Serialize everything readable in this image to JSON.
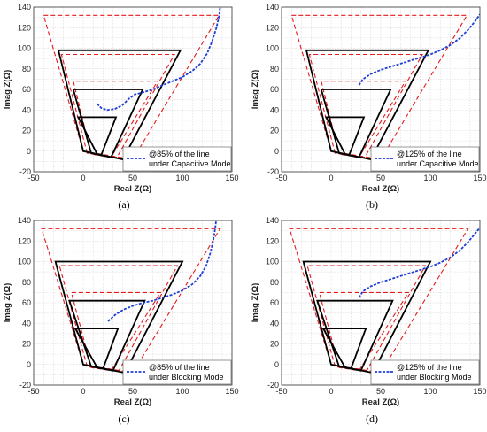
{
  "chart_data": [
    {
      "id": "a",
      "type": "line",
      "caption": "(a)",
      "xlabel": "Real Z(Ω)",
      "ylabel": "Imag Z(Ω)",
      "xlim": [
        -50,
        150
      ],
      "ylim": [
        -20,
        140
      ],
      "xticks": [
        -50,
        0,
        50,
        100,
        150
      ],
      "yticks": [
        -20,
        0,
        20,
        40,
        60,
        80,
        100,
        120,
        140
      ],
      "grid": true,
      "legend": {
        "placement": "bottom-right",
        "label_line1": "@85% of the line",
        "label_line2": "under Capacitive Mode"
      },
      "zones_solid": [
        [
          [
            0,
            0
          ],
          [
            -25,
            98
          ],
          [
            98,
            98
          ],
          [
            40,
            -8
          ]
        ],
        [
          [
            8,
            -2
          ],
          [
            -10,
            60
          ],
          [
            60,
            60
          ],
          [
            28,
            -6
          ]
        ],
        [
          [
            14,
            -3
          ],
          [
            -5,
            33
          ],
          [
            33,
            33
          ],
          [
            18,
            -4
          ]
        ]
      ],
      "zones_dashed": [
        [
          [
            0,
            0
          ],
          [
            -40,
            132
          ],
          [
            137,
            132
          ],
          [
            50,
            -8
          ]
        ],
        [
          [
            4,
            -2
          ],
          [
            -22,
            94
          ],
          [
            92,
            94
          ],
          [
            34,
            -6
          ]
        ],
        [
          [
            8,
            -3
          ],
          [
            -10,
            68
          ],
          [
            75,
            68
          ],
          [
            28,
            -6
          ]
        ]
      ],
      "trajectory": [
        [
          14,
          46
        ],
        [
          18,
          42
        ],
        [
          24,
          40
        ],
        [
          32,
          41
        ],
        [
          40,
          45
        ],
        [
          46,
          51
        ],
        [
          52,
          55
        ],
        [
          60,
          57
        ],
        [
          70,
          60
        ],
        [
          80,
          64
        ],
        [
          90,
          68
        ],
        [
          100,
          72
        ],
        [
          110,
          78
        ],
        [
          118,
          85
        ],
        [
          125,
          95
        ],
        [
          130,
          107
        ],
        [
          134,
          119
        ],
        [
          137,
          131
        ],
        [
          138,
          140
        ]
      ]
    },
    {
      "id": "b",
      "type": "line",
      "caption": "(b)",
      "xlabel": "Real Z(Ω)",
      "ylabel": "Imag Z(Ω)",
      "xlim": [
        -50,
        150
      ],
      "ylim": [
        -20,
        140
      ],
      "xticks": [
        -50,
        0,
        50,
        100,
        150
      ],
      "yticks": [
        -20,
        0,
        20,
        40,
        60,
        80,
        100,
        120,
        140
      ],
      "grid": true,
      "legend": {
        "placement": "bottom-right",
        "label_line1": "@125% of the line",
        "label_line2": "under Capacitive Mode"
      },
      "zones_solid": [
        [
          [
            0,
            0
          ],
          [
            -25,
            98
          ],
          [
            98,
            98
          ],
          [
            40,
            -8
          ]
        ],
        [
          [
            8,
            -2
          ],
          [
            -10,
            60
          ],
          [
            60,
            60
          ],
          [
            28,
            -6
          ]
        ],
        [
          [
            14,
            -3
          ],
          [
            -5,
            33
          ],
          [
            33,
            33
          ],
          [
            18,
            -4
          ]
        ]
      ],
      "zones_dashed": [
        [
          [
            0,
            0
          ],
          [
            -40,
            132
          ],
          [
            137,
            132
          ],
          [
            50,
            -8
          ]
        ],
        [
          [
            4,
            -2
          ],
          [
            -22,
            94
          ],
          [
            92,
            94
          ],
          [
            34,
            -6
          ]
        ],
        [
          [
            8,
            -3
          ],
          [
            -10,
            68
          ],
          [
            75,
            68
          ],
          [
            28,
            -6
          ]
        ]
      ],
      "trajectory": [
        [
          28,
          64
        ],
        [
          32,
          70
        ],
        [
          40,
          75
        ],
        [
          50,
          79
        ],
        [
          60,
          82
        ],
        [
          70,
          85
        ],
        [
          80,
          88
        ],
        [
          90,
          91
        ],
        [
          100,
          94
        ],
        [
          110,
          98
        ],
        [
          120,
          103
        ],
        [
          130,
          110
        ],
        [
          138,
          118
        ],
        [
          145,
          126
        ],
        [
          150,
          133
        ]
      ]
    },
    {
      "id": "c",
      "type": "line",
      "caption": "(c)",
      "xlabel": "Real Z(Ω)",
      "ylabel": "Imag Z(Ω)",
      "xlim": [
        -50,
        150
      ],
      "ylim": [
        -20,
        140
      ],
      "xticks": [
        -50,
        0,
        50,
        100,
        150
      ],
      "yticks": [
        -20,
        0,
        20,
        40,
        60,
        80,
        100,
        120,
        140
      ],
      "grid": true,
      "legend": {
        "placement": "bottom-right",
        "label_line1": "@85% of the line",
        "label_line2": "under Blocking Mode"
      },
      "zones_solid": [
        [
          [
            0,
            0
          ],
          [
            -28,
            100
          ],
          [
            100,
            100
          ],
          [
            42,
            -8
          ]
        ],
        [
          [
            8,
            -2
          ],
          [
            -14,
            62
          ],
          [
            62,
            62
          ],
          [
            30,
            -6
          ]
        ],
        [
          [
            14,
            -3
          ],
          [
            -8,
            35
          ],
          [
            35,
            35
          ],
          [
            20,
            -4
          ]
        ]
      ],
      "zones_dashed": [
        [
          [
            0,
            0
          ],
          [
            -42,
            132
          ],
          [
            138,
            132
          ],
          [
            50,
            -8
          ]
        ],
        [
          [
            4,
            -2
          ],
          [
            -24,
            96
          ],
          [
            95,
            96
          ],
          [
            36,
            -6
          ]
        ],
        [
          [
            8,
            -3
          ],
          [
            -12,
            70
          ],
          [
            78,
            70
          ],
          [
            28,
            -6
          ]
        ]
      ],
      "trajectory": [
        [
          25,
          42
        ],
        [
          32,
          48
        ],
        [
          40,
          53
        ],
        [
          50,
          57
        ],
        [
          60,
          60
        ],
        [
          70,
          62
        ],
        [
          80,
          65
        ],
        [
          90,
          68
        ],
        [
          100,
          72
        ],
        [
          110,
          78
        ],
        [
          118,
          86
        ],
        [
          124,
          96
        ],
        [
          128,
          108
        ],
        [
          131,
          120
        ],
        [
          133,
          132
        ],
        [
          134,
          140
        ]
      ]
    },
    {
      "id": "d",
      "type": "line",
      "caption": "(d)",
      "xlabel": "Real Z(Ω)",
      "ylabel": "Imag Z(Ω)",
      "xlim": [
        -50,
        150
      ],
      "ylim": [
        -20,
        140
      ],
      "xticks": [
        -50,
        0,
        50,
        100,
        150
      ],
      "yticks": [
        -20,
        0,
        20,
        40,
        60,
        80,
        100,
        120,
        140
      ],
      "grid": true,
      "legend": {
        "placement": "bottom-right",
        "label_line1": "@125% of the line",
        "label_line2": "under Blocking Mode"
      },
      "zones_solid": [
        [
          [
            0,
            0
          ],
          [
            -28,
            100
          ],
          [
            100,
            100
          ],
          [
            42,
            -8
          ]
        ],
        [
          [
            8,
            -2
          ],
          [
            -14,
            62
          ],
          [
            62,
            62
          ],
          [
            30,
            -6
          ]
        ],
        [
          [
            14,
            -3
          ],
          [
            -8,
            35
          ],
          [
            35,
            35
          ],
          [
            20,
            -4
          ]
        ]
      ],
      "zones_dashed": [
        [
          [
            0,
            0
          ],
          [
            -42,
            132
          ],
          [
            138,
            132
          ],
          [
            50,
            -8
          ]
        ],
        [
          [
            4,
            -2
          ],
          [
            -24,
            96
          ],
          [
            95,
            96
          ],
          [
            36,
            -6
          ]
        ],
        [
          [
            8,
            -3
          ],
          [
            -12,
            70
          ],
          [
            78,
            70
          ],
          [
            28,
            -6
          ]
        ]
      ],
      "trajectory": [
        [
          28,
          65
        ],
        [
          32,
          71
        ],
        [
          40,
          76
        ],
        [
          50,
          80
        ],
        [
          60,
          83
        ],
        [
          70,
          86
        ],
        [
          80,
          89
        ],
        [
          90,
          92
        ],
        [
          100,
          95
        ],
        [
          110,
          99
        ],
        [
          120,
          104
        ],
        [
          130,
          111
        ],
        [
          138,
          119
        ],
        [
          145,
          127
        ],
        [
          150,
          133
        ]
      ]
    }
  ],
  "colors": {
    "zone_solid": "#000000",
    "zone_dashed": "#e31a1c",
    "trajectory": "#1f3fd6",
    "grid": "#cfcfcf"
  }
}
